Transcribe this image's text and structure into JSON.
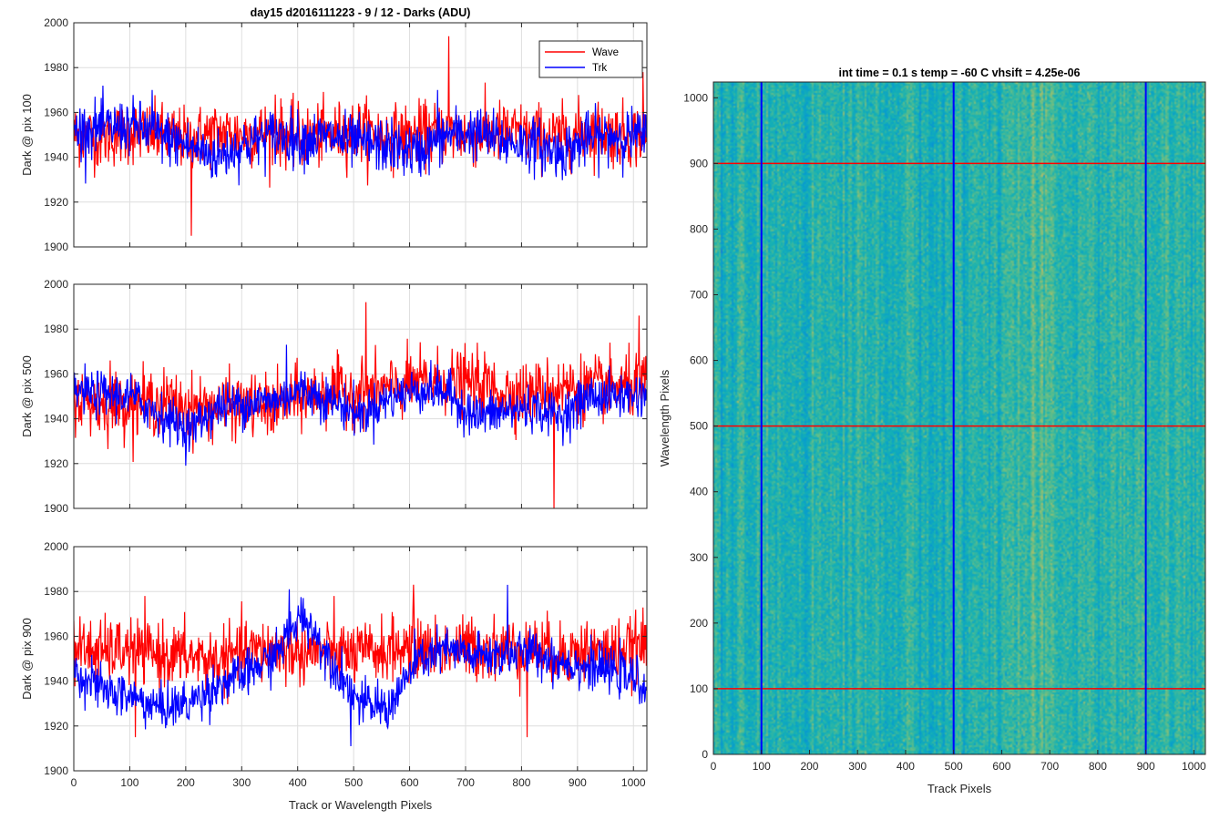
{
  "chart_data": [
    {
      "type": "line",
      "title": "day15 d2016111223 - 9 / 12 - Darks (ADU)",
      "xlabel": "",
      "ylabel": "Dark @ pix 100",
      "xlim": [
        0,
        1024
      ],
      "ylim": [
        1900,
        2000
      ],
      "xticks": [
        0,
        100,
        200,
        300,
        400,
        500,
        600,
        700,
        800,
        900,
        1000
      ],
      "yticks": [
        1900,
        1920,
        1940,
        1960,
        1980,
        2000
      ],
      "show_xticklabels": false,
      "grid": true,
      "legend": "top-right",
      "series": [
        {
          "name": "Wave",
          "color": "#ff0000",
          "mean": 1950,
          "noise": 7,
          "drift": [
            0,
            -1,
            1,
            0,
            -2,
            1,
            0,
            1,
            -1,
            0,
            2,
            -1,
            0,
            1,
            0,
            1,
            0,
            -1,
            2,
            0,
            0
          ],
          "spikes": [
            [
              670,
              1994
            ],
            [
              1017,
              1978
            ],
            [
              210,
              1905
            ],
            [
              360,
              1968
            ]
          ]
        },
        {
          "name": "Trk",
          "color": "#0000ff",
          "mean": 1948,
          "noise": 6,
          "drift": [
            4,
            5,
            6,
            2,
            -3,
            -8,
            -2,
            2,
            0,
            1,
            -2,
            -3,
            -6,
            2,
            3,
            -1,
            -2,
            -6,
            0,
            2,
            1
          ],
          "spikes": [
            [
              650,
              1970
            ],
            [
              140,
              1970
            ]
          ]
        }
      ]
    },
    {
      "type": "line",
      "title": "",
      "xlabel": "",
      "ylabel": "Dark @ pix 500",
      "xlim": [
        0,
        1024
      ],
      "ylim": [
        1900,
        2000
      ],
      "xticks": [
        0,
        100,
        200,
        300,
        400,
        500,
        600,
        700,
        800,
        900,
        1000
      ],
      "yticks": [
        1900,
        1920,
        1940,
        1960,
        1980,
        2000
      ],
      "show_xticklabels": false,
      "grid": true,
      "series": [
        {
          "name": "Wave",
          "color": "#ff0000",
          "mean": 1948,
          "noise": 7,
          "drift": [
            2,
            -2,
            -1,
            0,
            -3,
            -3,
            -2,
            -3,
            2,
            4,
            4,
            5,
            8,
            9,
            8,
            4,
            3,
            6,
            6,
            6,
            7
          ],
          "spikes": [
            [
              522,
              1992
            ],
            [
              858,
              1900
            ],
            [
              1010,
              1986
            ],
            [
              65,
              1966
            ]
          ]
        },
        {
          "name": "Trk",
          "color": "#0000ff",
          "mean": 1947,
          "noise": 5,
          "drift": [
            5,
            4,
            3,
            -5,
            -12,
            -2,
            0,
            1,
            6,
            1,
            -5,
            2,
            6,
            5,
            -6,
            -4,
            -2,
            -6,
            3,
            3,
            4
          ],
          "spikes": [
            [
              380,
              1973
            ],
            [
              780,
              1950
            ]
          ]
        }
      ]
    },
    {
      "type": "line",
      "title": "",
      "xlabel": "Track or Wavelength Pixels",
      "ylabel": "Dark @ pix 900",
      "xlim": [
        0,
        1024
      ],
      "ylim": [
        1900,
        2000
      ],
      "xticks": [
        0,
        100,
        200,
        300,
        400,
        500,
        600,
        700,
        800,
        900,
        1000
      ],
      "yticks": [
        1900,
        1920,
        1940,
        1960,
        1980,
        2000
      ],
      "show_xticklabels": true,
      "grid": true,
      "series": [
        {
          "name": "Wave",
          "color": "#ff0000",
          "mean": 1953,
          "noise": 7,
          "drift": [
            2,
            0,
            1,
            -1,
            -2,
            -4,
            0,
            1,
            0,
            0,
            -1,
            1,
            2,
            1,
            2,
            1,
            2,
            -1,
            1,
            0,
            3
          ],
          "spikes": [
            [
              607,
              1983
            ],
            [
              810,
              1915
            ],
            [
              110,
              1915
            ]
          ]
        },
        {
          "name": "Trk",
          "color": "#0000ff",
          "mean": 1948,
          "noise": 5,
          "drift": [
            -3,
            -12,
            -15,
            -20,
            -18,
            -10,
            -5,
            3,
            22,
            1,
            -18,
            -20,
            1,
            6,
            3,
            4,
            5,
            1,
            -2,
            -4,
            -10
          ],
          "spikes": [
            [
              385,
              1981
            ],
            [
              775,
              1983
            ],
            [
              495,
              1911
            ]
          ]
        }
      ]
    },
    {
      "type": "heatmap",
      "title": "int time = 0.1 s   temp = -60 C   vhsift = 4.25e-06",
      "xlabel": "Track Pixels",
      "ylabel": "Wavelength Pixels",
      "xlim": [
        0,
        1024
      ],
      "ylim": [
        0,
        1024
      ],
      "xticks": [
        0,
        100,
        200,
        300,
        400,
        500,
        600,
        700,
        800,
        900,
        1000
      ],
      "yticks": [
        0,
        100,
        200,
        300,
        400,
        500,
        600,
        700,
        800,
        900,
        1000
      ],
      "colormap": "parula",
      "vertical_markers": {
        "x": [
          100,
          500,
          900
        ],
        "color": "#0000ff"
      },
      "horizontal_markers": {
        "y": [
          100,
          500,
          900
        ],
        "color": "#ff0000"
      }
    }
  ]
}
